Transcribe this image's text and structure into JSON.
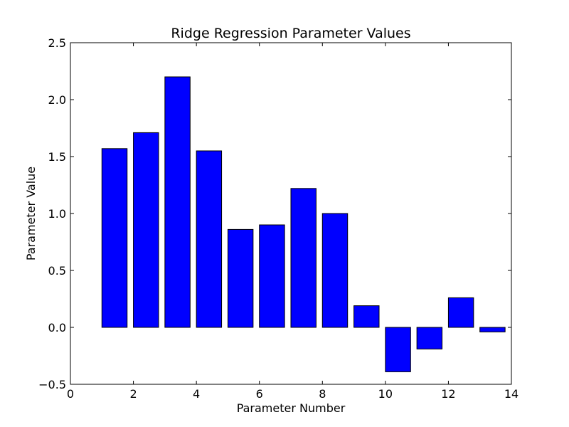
{
  "chart_data": {
    "type": "bar",
    "title": "Ridge Regression Parameter Values",
    "xlabel": "Parameter Number",
    "ylabel": "Parameter Value",
    "xlim": [
      0,
      14
    ],
    "ylim": [
      -0.5,
      2.5
    ],
    "x_ticks": [
      0,
      2,
      4,
      6,
      8,
      10,
      12,
      14
    ],
    "y_ticks": [
      -0.5,
      0.0,
      0.5,
      1.0,
      1.5,
      2.0,
      2.5
    ],
    "x_tick_labels": [
      "0",
      "2",
      "4",
      "6",
      "8",
      "10",
      "12",
      "14"
    ],
    "y_tick_labels": [
      "−0.5",
      "0.0",
      "0.5",
      "1.0",
      "1.5",
      "2.0",
      "2.5"
    ],
    "bar_width": 0.8,
    "grid": false,
    "bar_color": "#0000ff",
    "edge_color": "#000000",
    "x": [
      1,
      2,
      3,
      4,
      5,
      6,
      7,
      8,
      9,
      10,
      11,
      12,
      13
    ],
    "values": [
      1.57,
      1.71,
      2.2,
      1.55,
      0.86,
      0.9,
      1.22,
      1.0,
      0.19,
      -0.39,
      -0.19,
      0.26,
      -0.04
    ]
  }
}
